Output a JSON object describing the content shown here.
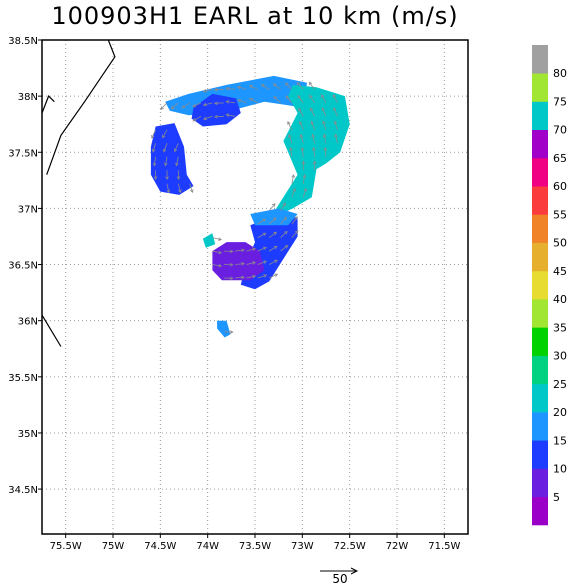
{
  "chart_data": {
    "type": "heatmap",
    "title": "100903H1 EARL at 10 km (m/s)",
    "xlabel": "",
    "ylabel": "",
    "xlim": [
      -75.75,
      -71.25
    ],
    "ylim": [
      34.1,
      38.5
    ],
    "grid": true,
    "x_ticks": [
      {
        "value": -75.5,
        "label": "75.5W"
      },
      {
        "value": -75.0,
        "label": "75W"
      },
      {
        "value": -74.5,
        "label": "74.5W"
      },
      {
        "value": -74.0,
        "label": "74W"
      },
      {
        "value": -73.5,
        "label": "73.5W"
      },
      {
        "value": -73.0,
        "label": "73W"
      },
      {
        "value": -72.5,
        "label": "72.5W"
      },
      {
        "value": -72.0,
        "label": "72W"
      },
      {
        "value": -71.5,
        "label": "71.5W"
      }
    ],
    "y_ticks": [
      {
        "value": 38.5,
        "label": "38.5N"
      },
      {
        "value": 38.0,
        "label": "38N"
      },
      {
        "value": 37.5,
        "label": "37.5N"
      },
      {
        "value": 37.0,
        "label": "37N"
      },
      {
        "value": 36.5,
        "label": "36.5N"
      },
      {
        "value": 36.0,
        "label": "36N"
      },
      {
        "value": 35.5,
        "label": "35.5N"
      },
      {
        "value": 35.0,
        "label": "35N"
      },
      {
        "value": 34.5,
        "label": "34.5N"
      }
    ],
    "colorbar": {
      "labels": [
        "5",
        "10",
        "15",
        "20",
        "25",
        "30",
        "35",
        "40",
        "45",
        "50",
        "55",
        "60",
        "65",
        "70",
        "75",
        "80"
      ],
      "colors": [
        "#9b00c8",
        "#6a1ee0",
        "#1e3cff",
        "#1e96ff",
        "#00c8c8",
        "#00d282",
        "#00d200",
        "#a0e632",
        "#e6dc32",
        "#e6af2d",
        "#f08228",
        "#fa3c3c",
        "#f00082",
        "#a000c8",
        "#00c8c8",
        "#a0e632",
        "#a0a0a0"
      ]
    },
    "wind_regions": [
      {
        "name": "north-arc",
        "speed_mps": 17,
        "polygon": [
          [
            -74.45,
            37.95
          ],
          [
            -74.2,
            38.02
          ],
          [
            -73.8,
            38.1
          ],
          [
            -73.3,
            38.18
          ],
          [
            -72.95,
            38.12
          ],
          [
            -73.0,
            37.9
          ],
          [
            -73.4,
            37.95
          ],
          [
            -73.85,
            37.85
          ],
          [
            -74.2,
            37.83
          ],
          [
            -74.4,
            37.87
          ]
        ]
      },
      {
        "name": "north-core",
        "speed_mps": 10,
        "polygon": [
          [
            -74.15,
            37.9
          ],
          [
            -73.95,
            38.02
          ],
          [
            -73.7,
            37.98
          ],
          [
            -73.65,
            37.85
          ],
          [
            -73.8,
            37.75
          ],
          [
            -74.05,
            37.73
          ],
          [
            -74.17,
            37.8
          ]
        ]
      },
      {
        "name": "eastern-arc",
        "speed_mps": 21,
        "polygon": [
          [
            -73.1,
            38.1
          ],
          [
            -72.85,
            38.08
          ],
          [
            -72.55,
            38.0
          ],
          [
            -72.5,
            37.75
          ],
          [
            -72.6,
            37.5
          ],
          [
            -72.75,
            37.4
          ],
          [
            -72.85,
            37.35
          ],
          [
            -72.9,
            37.1
          ],
          [
            -73.1,
            37.0
          ],
          [
            -73.35,
            36.9
          ],
          [
            -73.05,
            37.3
          ],
          [
            -73.2,
            37.6
          ],
          [
            -73.05,
            37.85
          ],
          [
            -73.15,
            38.0
          ]
        ]
      },
      {
        "name": "western-blob",
        "speed_mps": 11,
        "polygon": [
          [
            -74.55,
            37.73
          ],
          [
            -74.35,
            37.76
          ],
          [
            -74.25,
            37.55
          ],
          [
            -74.22,
            37.3
          ],
          [
            -74.15,
            37.2
          ],
          [
            -74.3,
            37.12
          ],
          [
            -74.5,
            37.15
          ],
          [
            -74.6,
            37.3
          ],
          [
            -74.6,
            37.55
          ]
        ]
      },
      {
        "name": "southern-arc",
        "speed_mps": 12,
        "polygon": [
          [
            -73.55,
            36.85
          ],
          [
            -73.25,
            36.95
          ],
          [
            -73.05,
            36.92
          ],
          [
            -73.05,
            36.75
          ],
          [
            -73.2,
            36.55
          ],
          [
            -73.35,
            36.35
          ],
          [
            -73.5,
            36.28
          ],
          [
            -73.65,
            36.32
          ],
          [
            -73.6,
            36.5
          ],
          [
            -73.5,
            36.7
          ]
        ]
      },
      {
        "name": "southern-edge",
        "speed_mps": 16,
        "polygon": [
          [
            -73.55,
            36.95
          ],
          [
            -73.25,
            37.0
          ],
          [
            -73.05,
            36.95
          ],
          [
            -73.15,
            36.85
          ],
          [
            -73.5,
            36.85
          ]
        ]
      },
      {
        "name": "purple-core",
        "speed_mps": 6,
        "polygon": [
          [
            -73.95,
            36.62
          ],
          [
            -73.8,
            36.7
          ],
          [
            -73.6,
            36.7
          ],
          [
            -73.45,
            36.62
          ],
          [
            -73.4,
            36.45
          ],
          [
            -73.55,
            36.36
          ],
          [
            -73.85,
            36.36
          ],
          [
            -73.95,
            36.45
          ]
        ]
      },
      {
        "name": "small-cyan-patch",
        "speed_mps": 20,
        "polygon": [
          [
            -74.05,
            36.73
          ],
          [
            -73.95,
            36.78
          ],
          [
            -73.92,
            36.68
          ],
          [
            -74.02,
            36.65
          ]
        ]
      },
      {
        "name": "south-blue-patch",
        "speed_mps": 15,
        "polygon": [
          [
            -73.9,
            36.0
          ],
          [
            -73.8,
            36.0
          ],
          [
            -73.76,
            35.88
          ],
          [
            -73.82,
            35.85
          ],
          [
            -73.9,
            35.93
          ]
        ]
      }
    ],
    "coastline": [
      [
        [
          -75.75,
          37.85
        ],
        [
          -75.68,
          38.0
        ],
        [
          -75.62,
          37.95
        ]
      ],
      [
        [
          -75.7,
          37.3
        ],
        [
          -75.55,
          37.65
        ],
        [
          -75.3,
          37.95
        ],
        [
          -75.1,
          38.2
        ],
        [
          -74.98,
          38.35
        ],
        [
          -75.05,
          38.5
        ]
      ],
      [
        [
          -75.75,
          36.05
        ],
        [
          -75.55,
          35.77
        ]
      ]
    ],
    "vector_scale": {
      "label": "50"
    }
  }
}
